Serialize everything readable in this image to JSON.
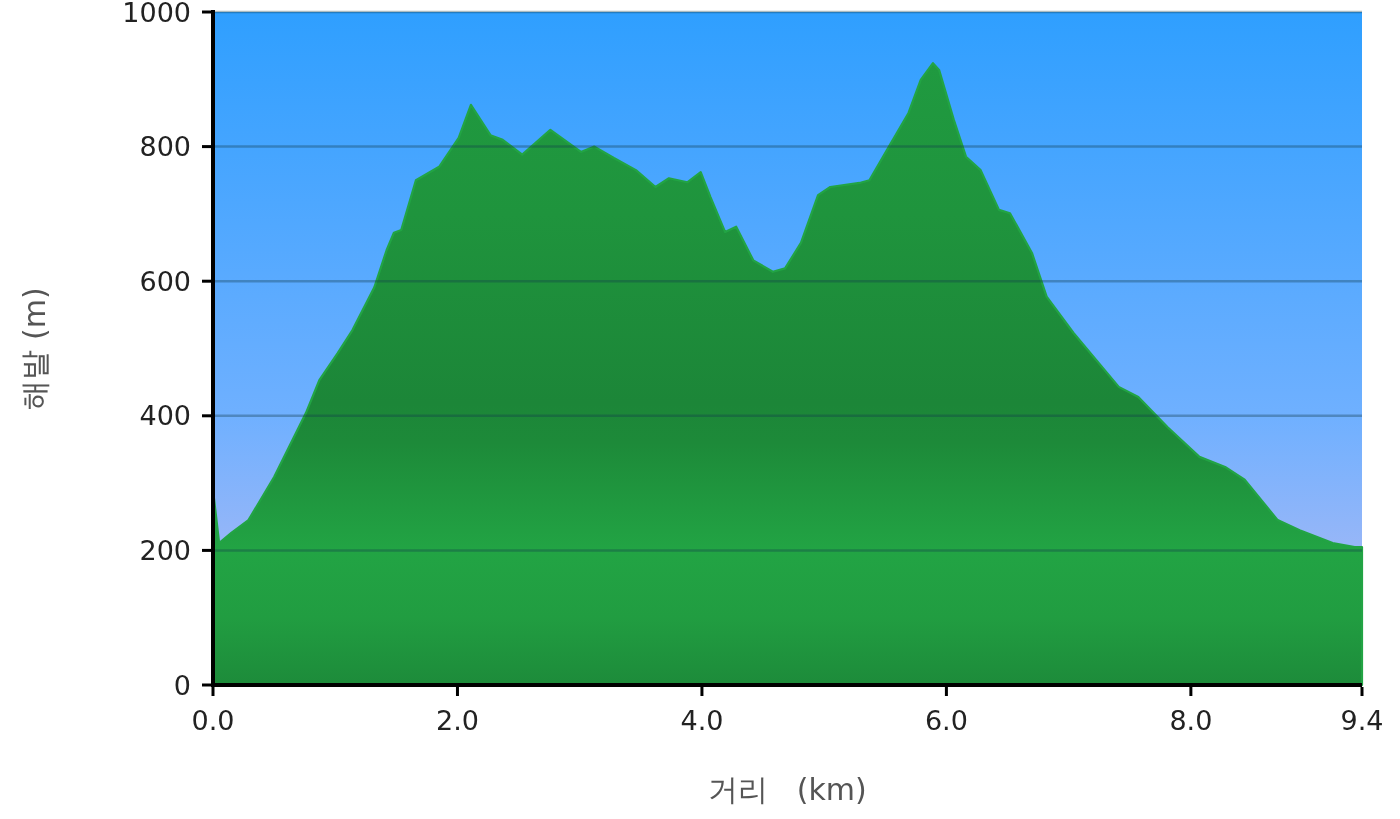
{
  "chart_data": {
    "type": "area",
    "xlabel": "거리   (km)",
    "ylabel": "해발 (m)",
    "x": [
      0.0,
      0.05,
      0.15,
      0.29,
      0.5,
      0.76,
      0.87,
      1.02,
      1.14,
      1.32,
      1.42,
      1.48,
      1.54,
      1.66,
      1.85,
      2.01,
      2.11,
      2.27,
      2.37,
      2.53,
      2.76,
      3.01,
      3.12,
      3.28,
      3.46,
      3.62,
      3.73,
      3.88,
      3.99,
      4.07,
      4.19,
      4.28,
      4.42,
      4.58,
      4.68,
      4.81,
      4.95,
      5.05,
      5.29,
      5.37,
      5.53,
      5.69,
      5.79,
      5.89,
      5.94,
      6.06,
      6.16,
      6.28,
      6.43,
      6.52,
      6.7,
      6.82,
      7.04,
      7.41,
      7.57,
      7.81,
      8.07,
      8.28,
      8.44,
      8.71,
      8.89,
      9.16,
      9.34,
      9.4
    ],
    "series": [
      {
        "color": "#22a444",
        "values": [
          290,
          211,
          226,
          245,
          309,
          404,
          453,
          493,
          527,
          591,
          646,
          672,
          676,
          750,
          770,
          813,
          862,
          817,
          810,
          788,
          825,
          792,
          800,
          783,
          765,
          740,
          753,
          747,
          762,
          725,
          673,
          681,
          631,
          614,
          619,
          657,
          728,
          740,
          746,
          750,
          800,
          850,
          899,
          924,
          914,
          840,
          785,
          765,
          706,
          701,
          642,
          577,
          523,
          443,
          428,
          383,
          339,
          324,
          305,
          245,
          230,
          211,
          205,
          205
        ]
      }
    ],
    "xlim": [
      0,
      9.4
    ],
    "xticks": [
      {
        "value": 0,
        "label": "0.0"
      },
      {
        "value": 2,
        "label": "2.0"
      },
      {
        "value": 4,
        "label": "4.0"
      },
      {
        "value": 6,
        "label": "6.0"
      },
      {
        "value": 8,
        "label": "8.0"
      },
      9.4
    ],
    "ylim": [
      0,
      1000
    ],
    "yticks": [
      0,
      200,
      400,
      600,
      800,
      1000
    ],
    "grid": "y"
  }
}
